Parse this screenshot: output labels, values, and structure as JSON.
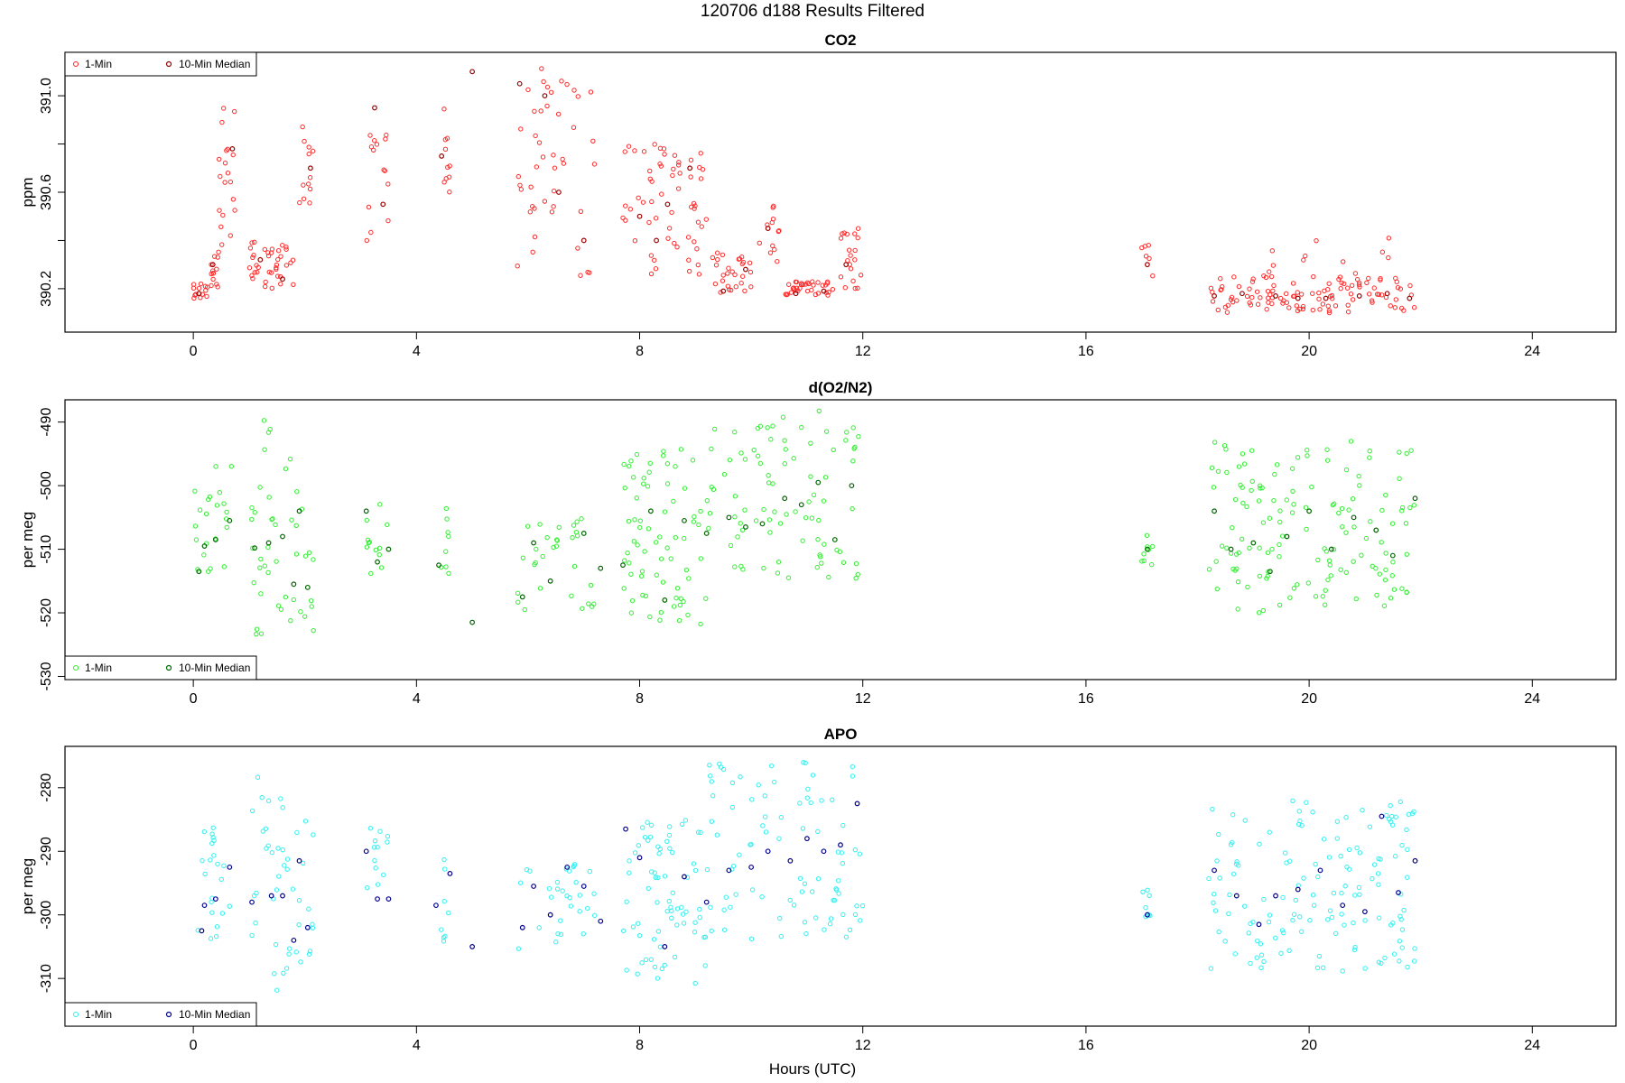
{
  "figure": {
    "title": "120706   d188   Results Filtered",
    "xlabel": "Hours (UTC)"
  },
  "legend_labels": [
    "1-Min",
    "10-Min Median"
  ],
  "chart_data": [
    {
      "type": "scatter",
      "title": "CO2",
      "ylabel": "ppm",
      "xlim": [
        -2.3,
        25.5
      ],
      "ylim": [
        390.02,
        391.18
      ],
      "xticks": [
        0,
        4,
        8,
        12,
        16,
        20,
        24
      ],
      "yticks": [
        390.2,
        390.6,
        391.0
      ],
      "ytick_labels": [
        "390.2",
        "390.6",
        "391.0"
      ],
      "yminor": [
        390.4,
        390.8
      ],
      "colors": {
        "one_min": "#ff2a2a",
        "median": "#9a0000"
      },
      "legend": "top-left",
      "series": [
        {
          "name": "1-Min",
          "clusters": [
            {
              "x": [
                0.0,
                0.3
              ],
              "y": [
                390.16,
                390.22
              ],
              "n": 14
            },
            {
              "x": [
                0.3,
                0.5
              ],
              "y": [
                390.2,
                390.34
              ],
              "n": 12
            },
            {
              "x": [
                0.45,
                0.75
              ],
              "y": [
                390.35,
                390.97
              ],
              "n": 20
            },
            {
              "x": [
                1.0,
                1.8
              ],
              "y": [
                390.2,
                390.4
              ],
              "n": 38
            },
            {
              "x": [
                1.9,
                2.2
              ],
              "y": [
                390.55,
                390.9
              ],
              "n": 12
            },
            {
              "x": [
                3.1,
                3.5
              ],
              "y": [
                390.35,
                390.85
              ],
              "n": 14
            },
            {
              "x": [
                4.4,
                4.6
              ],
              "y": [
                390.55,
                390.95
              ],
              "n": 10
            },
            {
              "x": [
                5.8,
                7.2
              ],
              "y": [
                390.25,
                391.13
              ],
              "n": 45
            },
            {
              "x": [
                7.7,
                9.2
              ],
              "y": [
                390.25,
                390.8
              ],
              "n": 60
            },
            {
              "x": [
                9.3,
                10.0
              ],
              "y": [
                390.18,
                390.35
              ],
              "n": 28
            },
            {
              "x": [
                10.1,
                10.5
              ],
              "y": [
                390.3,
                390.55
              ],
              "n": 12
            },
            {
              "x": [
                10.6,
                11.5
              ],
              "y": [
                390.17,
                390.23
              ],
              "n": 35
            },
            {
              "x": [
                11.6,
                12.0
              ],
              "y": [
                390.2,
                390.45
              ],
              "n": 20
            },
            {
              "x": [
                17.0,
                17.2
              ],
              "y": [
                390.25,
                390.4
              ],
              "n": 6
            },
            {
              "x": [
                18.2,
                21.9
              ],
              "y": [
                390.1,
                390.25
              ],
              "n": 110
            },
            {
              "x": [
                19.1,
                21.5
              ],
              "y": [
                390.25,
                390.45
              ],
              "n": 12
            }
          ]
        },
        {
          "name": "10-Min Median",
          "points": [
            [
              0.1,
              390.18
            ],
            [
              0.35,
              390.3
            ],
            [
              0.7,
              390.78
            ],
            [
              1.2,
              390.32
            ],
            [
              1.6,
              390.24
            ],
            [
              2.1,
              390.7
            ],
            [
              3.25,
              390.95
            ],
            [
              3.4,
              390.55
            ],
            [
              4.45,
              390.75
            ],
            [
              5.0,
              391.1
            ],
            [
              5.85,
              391.05
            ],
            [
              6.3,
              391.0
            ],
            [
              6.55,
              390.6
            ],
            [
              7.0,
              390.4
            ],
            [
              8.0,
              390.5
            ],
            [
              8.3,
              390.4
            ],
            [
              8.5,
              390.55
            ],
            [
              8.9,
              390.7
            ],
            [
              9.5,
              390.19
            ],
            [
              9.9,
              390.28
            ],
            [
              10.3,
              390.45
            ],
            [
              10.8,
              390.18
            ],
            [
              11.3,
              390.19
            ],
            [
              11.7,
              390.3
            ],
            [
              17.1,
              390.3
            ],
            [
              18.3,
              390.17
            ],
            [
              18.8,
              390.18
            ],
            [
              19.4,
              390.17
            ],
            [
              19.8,
              390.16
            ],
            [
              20.3,
              390.16
            ],
            [
              20.9,
              390.17
            ],
            [
              21.4,
              390.18
            ],
            [
              21.8,
              390.16
            ]
          ]
        }
      ]
    },
    {
      "type": "scatter",
      "title": "d(O2/N2)",
      "ylabel": "per meg",
      "xlim": [
        -2.3,
        25.5
      ],
      "ylim": [
        -530.5,
        -486.5
      ],
      "xticks": [
        0,
        4,
        8,
        12,
        16,
        20,
        24
      ],
      "yticks": [
        -530,
        -520,
        -510,
        -500,
        -490
      ],
      "ytick_labels": [
        "-530",
        "-520",
        "-510",
        "-500",
        "-490"
      ],
      "yminor": [],
      "colors": {
        "one_min": "#33ee33",
        "median": "#006400"
      },
      "legend": "bottom-left",
      "series": [
        {
          "name": "1-Min",
          "clusters": [
            {
              "x": [
                0.0,
                0.7
              ],
              "y": [
                -516,
                -496
              ],
              "n": 22
            },
            {
              "x": [
                1.0,
                2.2
              ],
              "y": [
                -524,
                -495
              ],
              "n": 40
            },
            {
              "x": [
                1.1,
                1.6
              ],
              "y": [
                -495,
                -489
              ],
              "n": 4
            },
            {
              "x": [
                3.1,
                3.5
              ],
              "y": [
                -514,
                -498
              ],
              "n": 12
            },
            {
              "x": [
                4.4,
                4.6
              ],
              "y": [
                -515,
                -503
              ],
              "n": 8
            },
            {
              "x": [
                5.8,
                7.2
              ],
              "y": [
                -520,
                -505
              ],
              "n": 30
            },
            {
              "x": [
                7.7,
                9.2
              ],
              "y": [
                -522,
                -494
              ],
              "n": 70
            },
            {
              "x": [
                9.2,
                12.0
              ],
              "y": [
                -515,
                -488
              ],
              "n": 85
            },
            {
              "x": [
                17.0,
                17.2
              ],
              "y": [
                -513,
                -507
              ],
              "n": 8
            },
            {
              "x": [
                18.2,
                21.9
              ],
              "y": [
                -520,
                -493
              ],
              "n": 140
            }
          ]
        },
        {
          "name": "10-Min Median",
          "points": [
            [
              0.1,
              -513.5
            ],
            [
              0.2,
              -509.5
            ],
            [
              0.4,
              -508.5
            ],
            [
              0.65,
              -505.5
            ],
            [
              1.1,
              -509.8
            ],
            [
              1.35,
              -509.0
            ],
            [
              1.6,
              -508.0
            ],
            [
              1.8,
              -515.5
            ],
            [
              1.9,
              -504.0
            ],
            [
              2.05,
              -516.0
            ],
            [
              3.1,
              -504.0
            ],
            [
              3.3,
              -512.0
            ],
            [
              3.5,
              -510.0
            ],
            [
              4.4,
              -512.5
            ],
            [
              5.0,
              -521.5
            ],
            [
              5.9,
              -517.5
            ],
            [
              6.1,
              -509.0
            ],
            [
              6.4,
              -515.0
            ],
            [
              7.0,
              -507.5
            ],
            [
              7.3,
              -513.0
            ],
            [
              7.7,
              -512.5
            ],
            [
              8.2,
              -504.0
            ],
            [
              8.45,
              -518.0
            ],
            [
              8.8,
              -505.5
            ],
            [
              9.2,
              -507.5
            ],
            [
              9.6,
              -505.0
            ],
            [
              9.9,
              -506.5
            ],
            [
              10.2,
              -506.0
            ],
            [
              10.6,
              -502.0
            ],
            [
              10.9,
              -503.0
            ],
            [
              11.2,
              -499.5
            ],
            [
              11.5,
              -508.5
            ],
            [
              11.8,
              -500.0
            ],
            [
              17.1,
              -510.0
            ],
            [
              18.3,
              -504.0
            ],
            [
              18.6,
              -510.0
            ],
            [
              19.0,
              -509.0
            ],
            [
              19.3,
              -513.5
            ],
            [
              19.6,
              -508.0
            ],
            [
              20.0,
              -504.0
            ],
            [
              20.4,
              -510.0
            ],
            [
              20.8,
              -505.0
            ],
            [
              21.2,
              -507.0
            ],
            [
              21.5,
              -511.0
            ],
            [
              21.9,
              -502.0
            ]
          ]
        }
      ]
    },
    {
      "type": "scatter",
      "title": "APO",
      "ylabel": "per meg",
      "xlim": [
        -2.3,
        25.5
      ],
      "ylim": [
        -317.5,
        -273.5
      ],
      "xticks": [
        0,
        4,
        8,
        12,
        16,
        20,
        24
      ],
      "yticks": [
        -310,
        -300,
        -290,
        -280
      ],
      "ytick_labels": [
        "-310",
        "-300",
        "-290",
        "-280"
      ],
      "yminor": [],
      "colors": {
        "one_min": "#33f0f0",
        "median": "#00008b"
      },
      "legend": "bottom-left",
      "series": [
        {
          "name": "1-Min",
          "clusters": [
            {
              "x": [
                0.0,
                0.7
              ],
              "y": [
                -305,
                -285
              ],
              "n": 22
            },
            {
              "x": [
                1.0,
                2.2
              ],
              "y": [
                -312,
                -283
              ],
              "n": 40
            },
            {
              "x": [
                1.1,
                1.6
              ],
              "y": [
                -283,
                -276
              ],
              "n": 4
            },
            {
              "x": [
                3.1,
                3.5
              ],
              "y": [
                -301,
                -286
              ],
              "n": 12
            },
            {
              "x": [
                4.4,
                4.6
              ],
              "y": [
                -305,
                -291
              ],
              "n": 8
            },
            {
              "x": [
                5.8,
                7.2
              ],
              "y": [
                -306,
                -292
              ],
              "n": 30
            },
            {
              "x": [
                7.7,
                9.2
              ],
              "y": [
                -311,
                -285
              ],
              "n": 70
            },
            {
              "x": [
                9.2,
                12.0
              ],
              "y": [
                -304,
                -276
              ],
              "n": 85
            },
            {
              "x": [
                17.0,
                17.2
              ],
              "y": [
                -301,
                -295
              ],
              "n": 8
            },
            {
              "x": [
                18.2,
                21.9
              ],
              "y": [
                -309,
                -282
              ],
              "n": 140
            }
          ]
        },
        {
          "name": "10-Min Median",
          "points": [
            [
              0.15,
              -302.5
            ],
            [
              0.2,
              -298.5
            ],
            [
              0.4,
              -297.5
            ],
            [
              0.65,
              -292.5
            ],
            [
              1.05,
              -298.0
            ],
            [
              1.4,
              -297.0
            ],
            [
              1.6,
              -297.0
            ],
            [
              1.8,
              -304.0
            ],
            [
              1.9,
              -291.5
            ],
            [
              2.05,
              -302.0
            ],
            [
              3.1,
              -290.0
            ],
            [
              3.3,
              -297.5
            ],
            [
              3.5,
              -297.5
            ],
            [
              4.35,
              -298.5
            ],
            [
              4.6,
              -293.5
            ],
            [
              5.0,
              -305.0
            ],
            [
              5.9,
              -302.0
            ],
            [
              6.1,
              -295.5
            ],
            [
              6.4,
              -300.0
            ],
            [
              6.7,
              -292.5
            ],
            [
              7.0,
              -295.5
            ],
            [
              7.3,
              -301.0
            ],
            [
              7.75,
              -286.5
            ],
            [
              8.0,
              -291.0
            ],
            [
              8.45,
              -305.0
            ],
            [
              8.8,
              -294.0
            ],
            [
              9.2,
              -298.0
            ],
            [
              9.6,
              -293.0
            ],
            [
              10.0,
              -292.5
            ],
            [
              10.3,
              -290.0
            ],
            [
              10.7,
              -291.5
            ],
            [
              11.0,
              -288.0
            ],
            [
              11.3,
              -290.0
            ],
            [
              11.6,
              -289.0
            ],
            [
              11.9,
              -282.5
            ],
            [
              17.1,
              -300.0
            ],
            [
              18.3,
              -293.0
            ],
            [
              18.7,
              -297.0
            ],
            [
              19.1,
              -301.5
            ],
            [
              19.4,
              -297.0
            ],
            [
              19.8,
              -296.0
            ],
            [
              20.2,
              -293.0
            ],
            [
              20.6,
              -298.5
            ],
            [
              21.0,
              -299.5
            ],
            [
              21.3,
              -284.5
            ],
            [
              21.6,
              -296.5
            ],
            [
              21.9,
              -291.5
            ]
          ]
        }
      ]
    }
  ]
}
